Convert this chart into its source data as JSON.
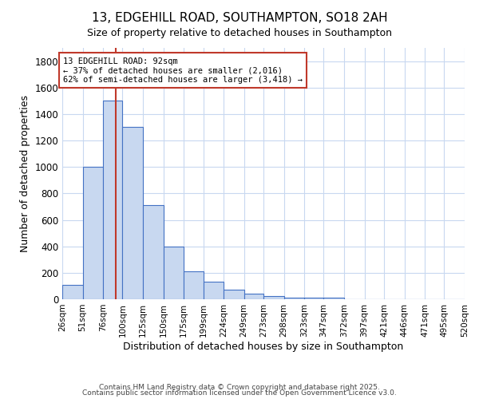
{
  "title_line1": "13, EDGEHILL ROAD, SOUTHAMPTON, SO18 2AH",
  "title_line2": "Size of property relative to detached houses in Southampton",
  "xlabel": "Distribution of detached houses by size in Southampton",
  "ylabel": "Number of detached properties",
  "footer1": "Contains HM Land Registry data © Crown copyright and database right 2025.",
  "footer2": "Contains public sector information licensed under the Open Government Licence v3.0.",
  "bin_edges": [
    26,
    51,
    76,
    100,
    125,
    150,
    175,
    199,
    224,
    249,
    273,
    298,
    323,
    347,
    372,
    397,
    421,
    446,
    471,
    495,
    520
  ],
  "bar_heights": [
    110,
    1000,
    1500,
    1300,
    710,
    400,
    210,
    130,
    75,
    40,
    25,
    10,
    15,
    15,
    0,
    0,
    0,
    0,
    0,
    0
  ],
  "bar_color": "#c8d8f0",
  "bar_edge_color": "#4472c4",
  "background_color": "#ffffff",
  "grid_color": "#c8d8f0",
  "vline_x": 92,
  "vline_color": "#c0392b",
  "annotation_text": "13 EDGEHILL ROAD: 92sqm\n← 37% of detached houses are smaller (2,016)\n62% of semi-detached houses are larger (3,418) →",
  "annotation_box_color": "#ffffff",
  "annotation_box_edge": "#c0392b",
  "ylim": [
    0,
    1900
  ],
  "yticks": [
    0,
    200,
    400,
    600,
    800,
    1000,
    1200,
    1400,
    1600,
    1800
  ]
}
